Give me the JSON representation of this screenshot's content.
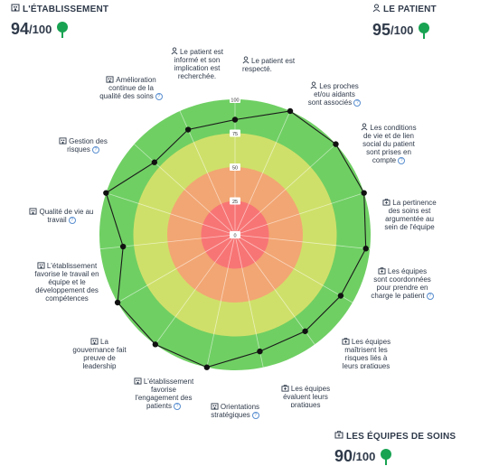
{
  "scores": {
    "etablissement": {
      "title": "L'ÉTABLISSEMENT",
      "value": "94",
      "max": "/100",
      "icon": "building-icon",
      "indicator_color": "#18a352"
    },
    "patient": {
      "title": "LE PATIENT",
      "value": "95",
      "max": "/100",
      "icon": "person-icon",
      "indicator_color": "#18a352"
    },
    "equipes": {
      "title": "LES ÉQUIPES DE SOINS",
      "value": "90",
      "max": "/100",
      "icon": "medical-kit-icon",
      "indicator_color": "#18a352"
    }
  },
  "help_glyph": "?",
  "chart_data": {
    "type": "radar",
    "r_ticks": [
      "0",
      "25",
      "50",
      "75",
      "100"
    ],
    "rlim": [
      0,
      100
    ],
    "bands": [
      {
        "from": 0,
        "to": 25,
        "color": "#f87575"
      },
      {
        "from": 25,
        "to": 50,
        "color": "#f2a673"
      },
      {
        "from": 50,
        "to": 75,
        "color": "#cfe06a"
      },
      {
        "from": 75,
        "to": 100,
        "color": "#6fcf63"
      }
    ],
    "axes": [
      {
        "label": "Le patient est informé et son implication est recherchée.",
        "value": 85,
        "icon": "person-icon",
        "help": false
      },
      {
        "label": "Le patient est respecté.",
        "value": 100,
        "icon": "person-icon",
        "help": false
      },
      {
        "label": "Les proches et/ou aidants sont associés",
        "value": 100,
        "icon": "person-icon",
        "help": true
      },
      {
        "label": "Les conditions de vie et de lien social du patient sont prises en compte",
        "value": 100,
        "icon": "person-icon",
        "help": true
      },
      {
        "label": "La pertinence des soins est argumentée au sein de l'équipe",
        "value": 97,
        "icon": "medical-kit-icon",
        "help": false
      },
      {
        "label": "Les équipes sont coordonnées pour prendre en charge le patient",
        "value": 90,
        "icon": "medical-kit-icon",
        "help": true
      },
      {
        "label": "Les équipes maîtrisent les risques liés à leurs pratiques",
        "value": 88,
        "icon": "medical-kit-icon",
        "help": false
      },
      {
        "label": "Les équipes évaluent leurs pratiques",
        "value": 88,
        "icon": "medical-kit-icon",
        "help": false
      },
      {
        "label": "Orientations stratégiques",
        "value": 100,
        "icon": "building-icon",
        "help": true
      },
      {
        "label": "L'établissement favorise l'engagement des patients",
        "value": 100,
        "icon": "building-icon",
        "help": true
      },
      {
        "label": "La gouvernance fait preuve de leadership",
        "value": 100,
        "icon": "building-icon",
        "help": false
      },
      {
        "label": "L'établissement favorise le travail en équipe et le développement des compétences",
        "value": 83,
        "icon": "building-icon",
        "help": false
      },
      {
        "label": "Qualité de vie au travail",
        "value": 100,
        "icon": "building-icon",
        "help": true
      },
      {
        "label": "Gestion des risques",
        "value": 80,
        "icon": "building-icon",
        "help": true
      },
      {
        "label": "Amélioration continue de la qualité des soins",
        "value": 85,
        "icon": "building-icon",
        "help": true
      }
    ],
    "line_color": "#1a1a1a",
    "point_color": "#111111"
  }
}
